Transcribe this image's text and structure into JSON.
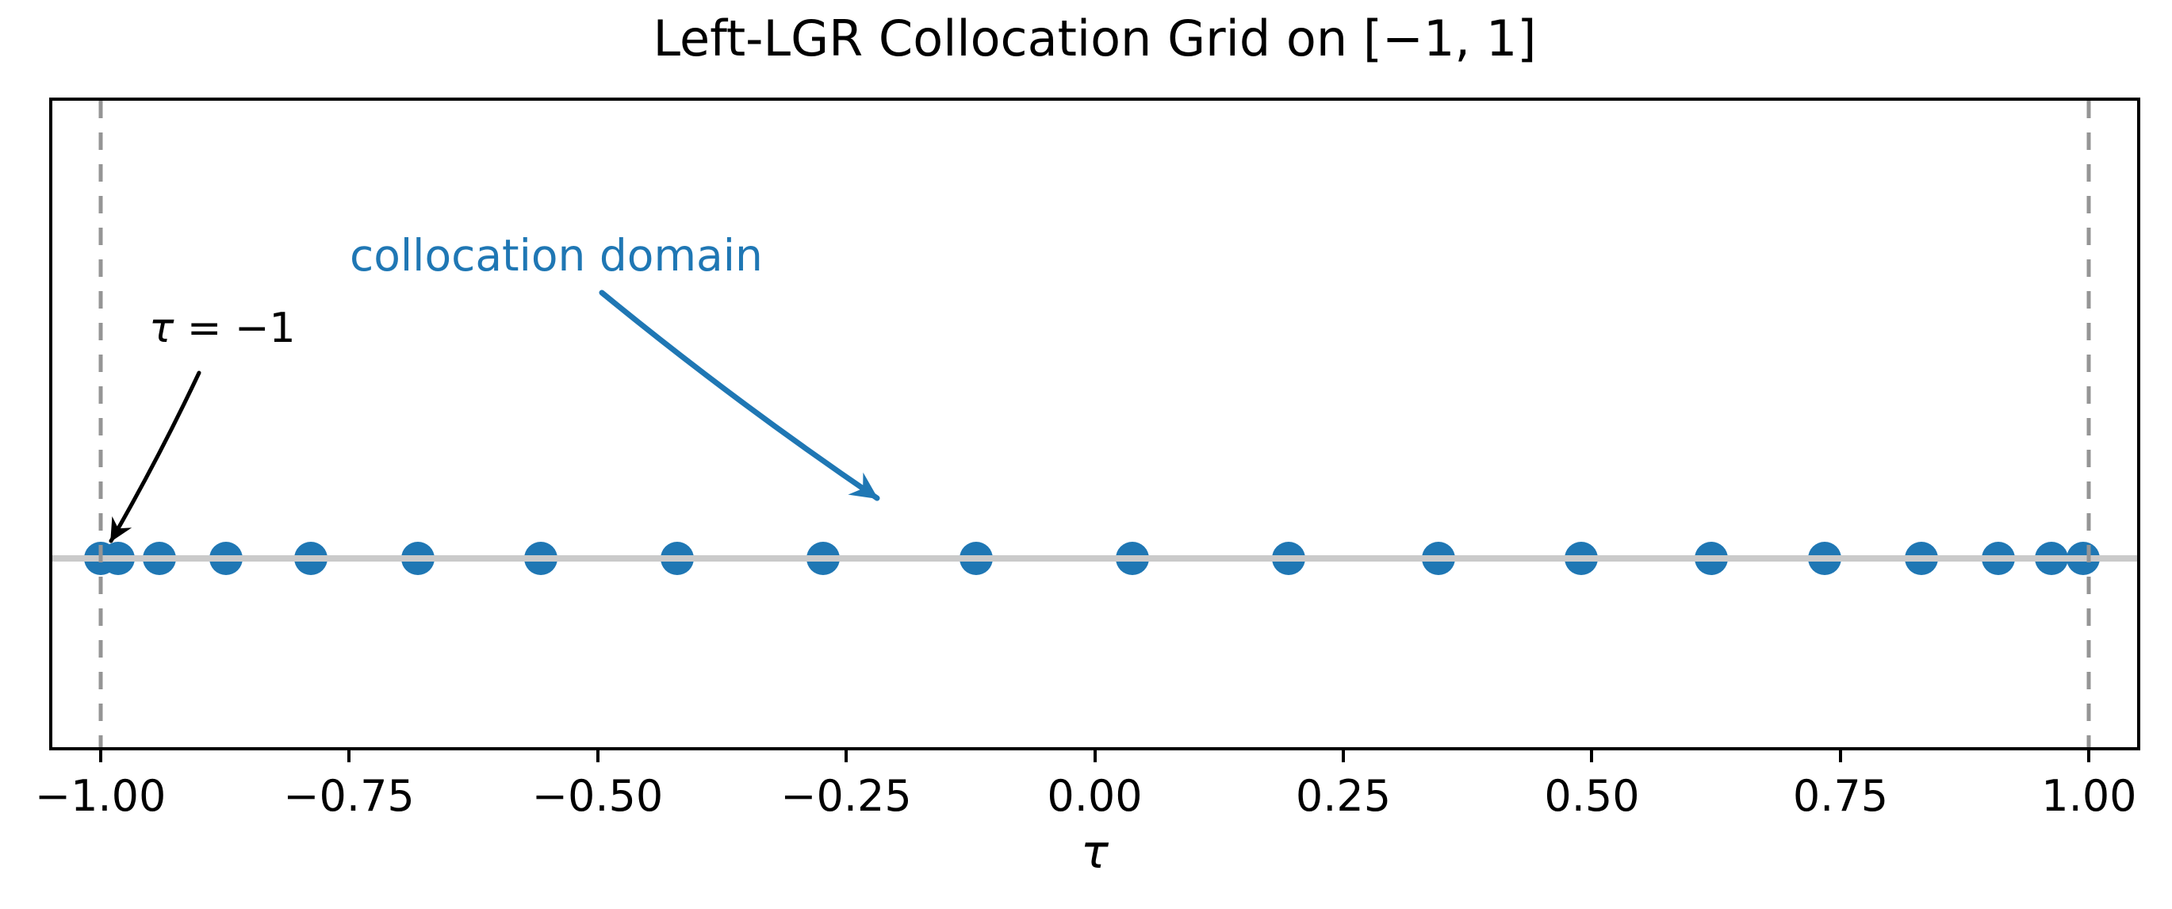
{
  "figure": {
    "title": "Left-LGR Collocation Grid on [−1, 1]",
    "xlabel": "τ"
  },
  "annotations": {
    "collocation_domain": {
      "text": "collocation domain",
      "color": "#1f77b4"
    },
    "tau_endpoint": {
      "symbol": "τ",
      "rest": " = −1",
      "color": "#000000"
    }
  },
  "chart_data": {
    "type": "scatter",
    "title": "Left-LGR Collocation Grid on [−1, 1]",
    "xlabel": "τ",
    "ylabel": "",
    "xlim": [
      -1.0515,
      1.0515
    ],
    "grid": false,
    "legend": null,
    "xticks": [
      -1.0,
      -0.75,
      -0.5,
      -0.25,
      0.0,
      0.25,
      0.5,
      0.75,
      1.0
    ],
    "xtick_labels": [
      "−1.00",
      "−0.75",
      "−0.50",
      "−0.25",
      "0.00",
      "0.25",
      "0.50",
      "0.75",
      "1.00"
    ],
    "collocation_points_tau": [
      -1.0,
      -0.982,
      -0.941,
      -0.874,
      -0.788,
      -0.681,
      -0.557,
      -0.42,
      -0.273,
      -0.119,
      0.038,
      0.195,
      0.346,
      0.489,
      0.62,
      0.734,
      0.831,
      0.909,
      0.962,
      0.994
    ],
    "points_y_value": 0,
    "baseline_y_value": 0,
    "domain_boundary_lines_tau": [
      -1,
      1
    ],
    "annotations": [
      {
        "text": "collocation domain",
        "color": "#1f77b4"
      },
      {
        "text": "τ = −1",
        "color": "#000000",
        "points_at_tau": -1
      }
    ],
    "colors": {
      "points": "#1f77b4",
      "baseline": "#cacaca",
      "domain_lines": "#959595",
      "frame": "#000000",
      "annotation_blue": "#1f77b4",
      "annotation_black": "#000000"
    }
  }
}
